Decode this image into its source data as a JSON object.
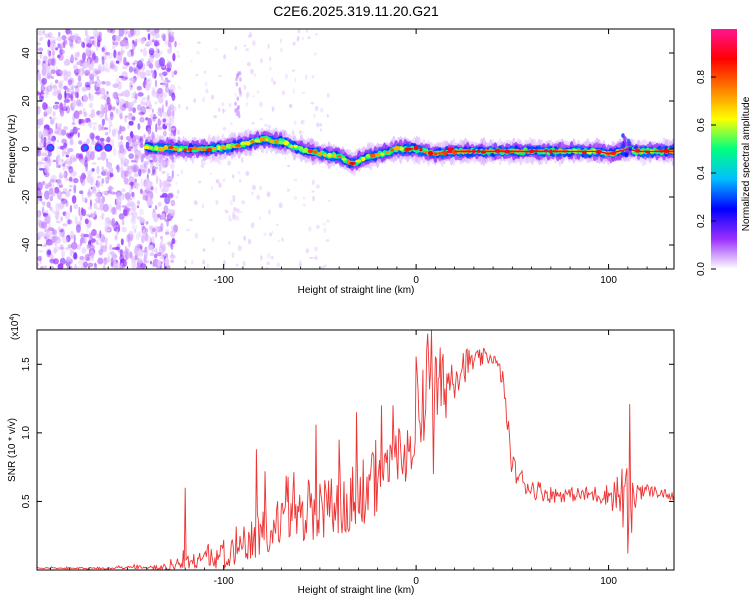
{
  "figure_title": "C2E6.2025.319.11.20.G21",
  "chart_data": [
    {
      "type": "heatmap",
      "name": "spectrogram",
      "xlabel": "Height of straight line (km)",
      "ylabel": "Frequency (Hz)",
      "xlim": [
        -197,
        134
      ],
      "ylim": [
        -50,
        50
      ],
      "x_ticks": [
        {
          "value": -100,
          "label": "-100"
        },
        {
          "value": 0,
          "label": "0"
        },
        {
          "value": 100,
          "label": "100"
        }
      ],
      "y_ticks": [
        {
          "value": 40,
          "label": "40"
        },
        {
          "value": 20,
          "label": "20"
        },
        {
          "value": 0,
          "label": "0"
        },
        {
          "value": -20,
          "label": "-20"
        },
        {
          "value": -40,
          "label": "-40"
        }
      ],
      "ridge": {
        "x": [
          -135,
          -120,
          -105,
          -90,
          -80,
          -70,
          -60,
          -50,
          -40,
          -33,
          -25,
          -18,
          -10,
          0,
          10,
          20,
          40,
          60,
          80,
          95,
          100,
          105,
          110,
          115,
          134
        ],
        "y": [
          0.5,
          0,
          0,
          2,
          4,
          3,
          0,
          -2,
          -3,
          -6,
          -3,
          -2,
          0,
          0,
          -2,
          -1,
          -1,
          -1,
          -1,
          -1,
          -2,
          -1,
          0,
          -1,
          -1
        ]
      },
      "colorbar": {
        "label": "Normalized spectral amplitude",
        "range": [
          0,
          1
        ],
        "ticks": [
          {
            "value": 0.0,
            "label": "0.0"
          },
          {
            "value": 0.2,
            "label": "0.2"
          },
          {
            "value": 0.4,
            "label": "0.4"
          },
          {
            "value": 0.6,
            "label": "0.6"
          },
          {
            "value": 0.8,
            "label": "0.8"
          }
        ],
        "stops": [
          "#ffffff",
          "#9b30ff",
          "#0000ff",
          "#00bfff",
          "#00ff80",
          "#ffff00",
          "#ff7f00",
          "#ff0000",
          "#ff1493"
        ]
      }
    },
    {
      "type": "line",
      "name": "snr",
      "xlabel": "Height of straight line (km)",
      "ylabel": "SNR (10 * v/v)",
      "multiplier_label": "(x10",
      "multiplier_exp": "4",
      "multiplier_close": ")",
      "xlim": [
        -197,
        134
      ],
      "ylim": [
        0,
        1.75
      ],
      "x_ticks": [
        {
          "value": -100,
          "label": "-100"
        },
        {
          "value": 0,
          "label": "0"
        },
        {
          "value": 100,
          "label": "100"
        }
      ],
      "y_ticks": [
        {
          "value": 0.5,
          "label": "0.5"
        },
        {
          "value": 1.0,
          "label": "1.0"
        },
        {
          "value": 1.5,
          "label": "1.5"
        }
      ],
      "series_color": "#ee3333",
      "envelope": {
        "x": [
          -197,
          -170,
          -140,
          -130,
          -120,
          -110,
          -100,
          -90,
          -80,
          -70,
          -60,
          -50,
          -40,
          -30,
          -20,
          -15,
          -10,
          -5,
          0,
          5,
          8,
          10,
          15,
          20,
          25,
          30,
          35,
          40,
          45,
          48,
          50,
          55,
          60,
          70,
          80,
          90,
          100,
          105,
          110,
          113,
          115,
          120,
          125,
          130,
          134
        ],
        "y": [
          0.02,
          0.02,
          0.03,
          0.05,
          0.1,
          0.15,
          0.25,
          0.35,
          0.45,
          0.55,
          0.6,
          0.7,
          0.75,
          0.8,
          0.9,
          1.0,
          1.1,
          1.05,
          1.2,
          1.3,
          1.6,
          1.3,
          1.35,
          1.45,
          1.5,
          1.52,
          1.55,
          1.55,
          1.4,
          1.0,
          0.75,
          0.65,
          0.6,
          0.55,
          0.55,
          0.55,
          0.55,
          0.55,
          0.5,
          0.45,
          0.6,
          0.58,
          0.57,
          0.55,
          0.53
        ]
      },
      "noise_amp": {
        "x": [
          -197,
          -140,
          -120,
          -100,
          -80,
          -60,
          -40,
          -20,
          0,
          10,
          20,
          30,
          40,
          46,
          50,
          60,
          80,
          100,
          110,
          115,
          120,
          134
        ],
        "y": [
          0.01,
          0.02,
          0.1,
          0.25,
          0.35,
          0.45,
          0.5,
          0.5,
          0.4,
          0.35,
          0.2,
          0.08,
          0.05,
          0.08,
          0.1,
          0.08,
          0.05,
          0.08,
          0.3,
          0.1,
          0.05,
          0.03
        ]
      },
      "spikes": [
        {
          "x": 8,
          "y": 1.75
        },
        {
          "x": -83,
          "y": 0.88
        },
        {
          "x": -52,
          "y": 1.06
        },
        {
          "x": -31,
          "y": 1.15
        },
        {
          "x": -18,
          "y": 1.2
        },
        {
          "x": 9,
          "y": 0.7
        },
        {
          "x": 111,
          "y": 1.21
        },
        {
          "x": 110,
          "y": 0.12
        },
        {
          "x": -120,
          "y": 0.6
        },
        {
          "x": -40,
          "y": 0.95
        }
      ]
    }
  ]
}
